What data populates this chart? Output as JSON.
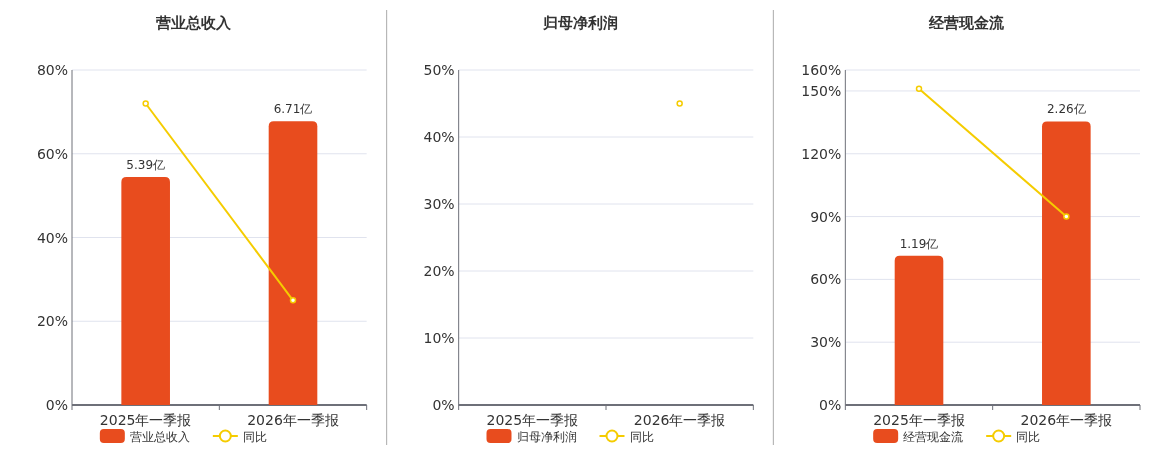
{
  "chart_data": [
    {
      "type": "bar",
      "title": "营业总收入",
      "categories": [
        "2025年一季报",
        "2026年一季报"
      ],
      "series": [
        {
          "name": "营业总收入",
          "color": "#e84c1e",
          "values": [
            5.39,
            6.71
          ],
          "value_labels": [
            "5.39亿",
            "6.71亿"
          ],
          "axis": "y2"
        },
        {
          "name": "同比",
          "type": "line",
          "color": "#f5cc00",
          "values": [
            72,
            25
          ],
          "marker": "circle"
        }
      ],
      "ylim": [
        0,
        80
      ],
      "yticks": [
        {
          "value": 0,
          "label": "0%"
        },
        {
          "value": 20,
          "label": "20%"
        },
        {
          "value": 40,
          "label": "40%"
        },
        {
          "value": 60,
          "label": "60%"
        },
        {
          "value": 80,
          "label": "80%"
        }
      ],
      "y2lim": [
        0,
        7.92
      ],
      "grid": "y",
      "legend": "bottom"
    },
    {
      "type": "bar",
      "title": "归母净利润",
      "categories": [
        "2025年一季报",
        "2026年一季报"
      ],
      "series": [
        {
          "name": "归母净利润",
          "color": "#e84c1e",
          "values": [
            null,
            null
          ],
          "axis": "y2"
        },
        {
          "name": "同比",
          "type": "line",
          "color": "#f5cc00",
          "values": [
            null,
            45
          ],
          "marker": "circle"
        }
      ],
      "ylim": [
        0,
        50
      ],
      "yticks": [
        {
          "value": 0,
          "label": "0%"
        },
        {
          "value": 10,
          "label": "10%"
        },
        {
          "value": 20,
          "label": "20%"
        },
        {
          "value": 30,
          "label": "30%"
        },
        {
          "value": 40,
          "label": "40%"
        },
        {
          "value": 50,
          "label": "50%"
        }
      ],
      "grid": "y",
      "legend": "bottom"
    },
    {
      "type": "bar",
      "title": "经营现金流",
      "categories": [
        "2025年一季报",
        "2026年一季报"
      ],
      "series": [
        {
          "name": "经营现金流",
          "color": "#e84c1e",
          "values": [
            1.19,
            2.26
          ],
          "value_labels": [
            "1.19亿",
            "2.26亿"
          ],
          "axis": "y2"
        },
        {
          "name": "同比",
          "type": "line",
          "color": "#f5cc00",
          "values": [
            151,
            90
          ],
          "marker": "circle"
        }
      ],
      "ylim": [
        0,
        160
      ],
      "yticks": [
        {
          "value": 0,
          "label": "0%"
        },
        {
          "value": 30,
          "label": "30%"
        },
        {
          "value": 60,
          "label": "60%"
        },
        {
          "value": 90,
          "label": "90%"
        },
        {
          "value": 120,
          "label": "120%"
        },
        {
          "value": 150,
          "label": "150%"
        },
        {
          "value": 160,
          "label": "160%"
        }
      ],
      "y2lim": [
        0,
        2.67
      ],
      "grid": "y",
      "legend": "bottom"
    }
  ]
}
